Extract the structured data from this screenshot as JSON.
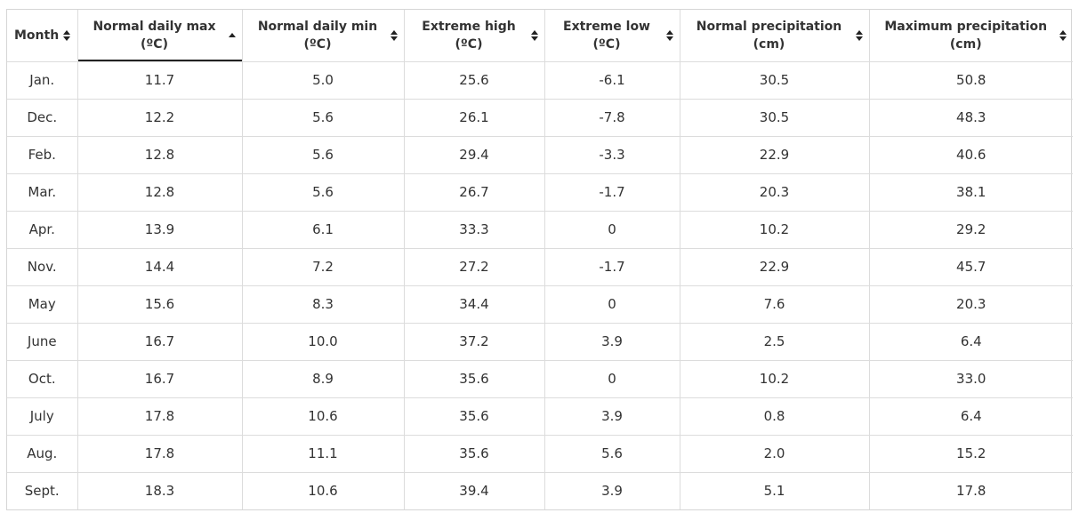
{
  "table": {
    "columns": [
      {
        "label": "Month",
        "sort": "both"
      },
      {
        "label": "Normal daily max\n(ºC)",
        "sort": "asc"
      },
      {
        "label": "Normal daily min\n(ºC)",
        "sort": "both"
      },
      {
        "label": "Extreme high\n(ºC)",
        "sort": "both"
      },
      {
        "label": "Extreme low\n(ºC)",
        "sort": "both"
      },
      {
        "label": "Normal precipitation\n(cm)",
        "sort": "both"
      },
      {
        "label": "Maximum precipitation\n(cm)",
        "sort": "both"
      }
    ],
    "rows": [
      [
        "Jan.",
        "11.7",
        "5.0",
        "25.6",
        "-6.1",
        "30.5",
        "50.8"
      ],
      [
        "Dec.",
        "12.2",
        "5.6",
        "26.1",
        "-7.8",
        "30.5",
        "48.3"
      ],
      [
        "Feb.",
        "12.8",
        "5.6",
        "29.4",
        "-3.3",
        "22.9",
        "40.6"
      ],
      [
        "Mar.",
        "12.8",
        "5.6",
        "26.7",
        "-1.7",
        "20.3",
        "38.1"
      ],
      [
        "Apr.",
        "13.9",
        "6.1",
        "33.3",
        "0",
        "10.2",
        "29.2"
      ],
      [
        "Nov.",
        "14.4",
        "7.2",
        "27.2",
        "-1.7",
        "22.9",
        "45.7"
      ],
      [
        "May",
        "15.6",
        "8.3",
        "34.4",
        "0",
        "7.6",
        "20.3"
      ],
      [
        "June",
        "16.7",
        "10.0",
        "37.2",
        "3.9",
        "2.5",
        "6.4"
      ],
      [
        "Oct.",
        "16.7",
        "8.9",
        "35.6",
        "0",
        "10.2",
        "33.0"
      ],
      [
        "July",
        "17.8",
        "10.6",
        "35.6",
        "3.9",
        "0.8",
        "6.4"
      ],
      [
        "Aug.",
        "17.8",
        "11.1",
        "35.6",
        "5.6",
        "2.0",
        "15.2"
      ],
      [
        "Sept.",
        "18.3",
        "10.6",
        "39.4",
        "3.9",
        "5.1",
        "17.8"
      ]
    ]
  },
  "colors": {
    "border": "#dcdcdc",
    "text": "#333333",
    "sorted_underline": "#222222"
  }
}
